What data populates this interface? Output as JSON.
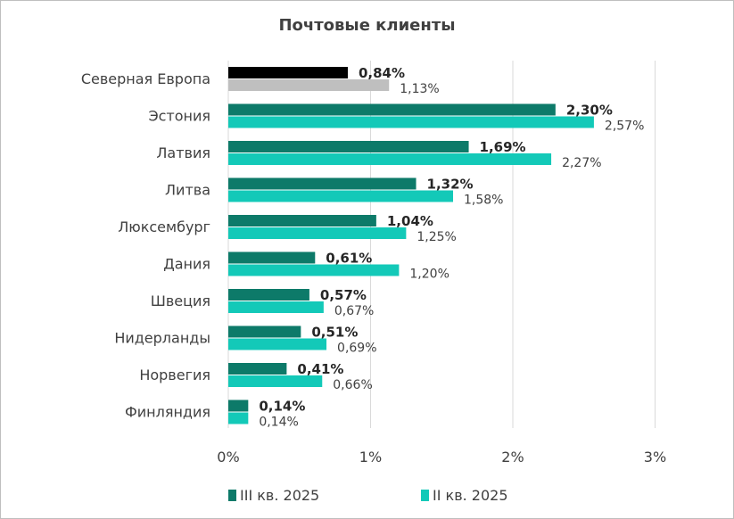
{
  "chart_data": {
    "type": "bar",
    "orientation": "horizontal",
    "title": "Почтовые клиенты",
    "categories": [
      "Северная Европа",
      "Эстония",
      "Латвия",
      "Литва",
      "Люксембург",
      "Дания",
      "Швеция",
      "Нидерланды",
      "Норвегия",
      "Финляндия"
    ],
    "series": [
      {
        "name": "III кв. 2025",
        "values": [
          0.84,
          2.3,
          1.69,
          1.32,
          1.04,
          0.61,
          0.57,
          0.51,
          0.41,
          0.14
        ],
        "labels": [
          "0,84%",
          "2,30%",
          "1,69%",
          "1,32%",
          "1,04%",
          "0,61%",
          "0,57%",
          "0,51%",
          "0,41%",
          "0,14%"
        ],
        "color": "#0d7a69",
        "highlight_color": "#000000"
      },
      {
        "name": "II кв. 2025",
        "values": [
          1.13,
          2.57,
          2.27,
          1.58,
          1.25,
          1.2,
          0.67,
          0.69,
          0.66,
          0.14
        ],
        "labels": [
          "1,13%",
          "2,57%",
          "2,27%",
          "1,58%",
          "1,25%",
          "1,20%",
          "0,67%",
          "0,69%",
          "0,66%",
          "0,14%"
        ],
        "color": "#13c9b8",
        "highlight_color": "#bfbfbf"
      }
    ],
    "highlight_category": "Северная Европа",
    "xlim": [
      0,
      3
    ],
    "x_ticks": [
      0,
      1,
      2,
      3
    ],
    "x_tick_labels": [
      "0%",
      "1%",
      "2%",
      "3%"
    ],
    "grid": true,
    "legend_position": "bottom"
  }
}
